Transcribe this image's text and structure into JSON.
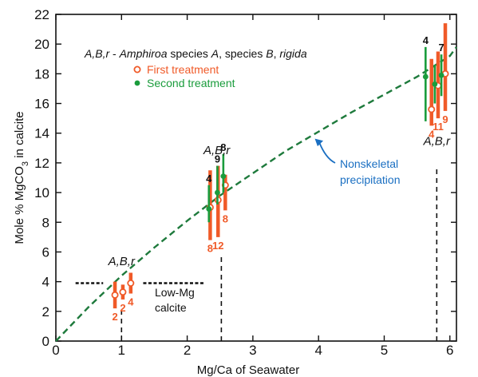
{
  "chart_data": {
    "type": "scatter",
    "xlabel": "Mg/Ca of Seawater",
    "ylabel_main": "Mole % MgCO",
    "ylabel_sub": "3",
    "ylabel_tail": " in calcite",
    "xlim": [
      0,
      6.1
    ],
    "ylim": [
      0,
      22
    ],
    "xticks": [
      0,
      1,
      2,
      3,
      4,
      5,
      6
    ],
    "yticks": [
      0,
      2,
      4,
      6,
      8,
      10,
      12,
      14,
      16,
      18,
      20,
      22
    ],
    "grid": false,
    "colors": {
      "first": "#f05a28",
      "second": "#1a9c3c",
      "curve": "#1e7a3c",
      "nonskeletal": "#1a6fc2",
      "dark": "#222222",
      "lowmg_box": "#f05a28"
    },
    "legend": {
      "title_prefix": "A,B,r",
      "title_dash": " - ",
      "title_genus": "Amphiroa",
      "title_rest": " species ",
      "title_a": "A",
      "title_comma": ", species ",
      "title_b": "B",
      "title_comma2": ", ",
      "title_r": "rigida",
      "first_label": "First treatment",
      "second_label": "Second treatment",
      "placement": "top-left"
    },
    "curve": {
      "name": "Nonskeletal precipitation",
      "x": [
        0,
        0.5,
        1,
        1.5,
        2,
        2.5,
        3,
        3.5,
        4,
        4.5,
        5,
        5.5,
        6,
        6.1
      ],
      "y": [
        0,
        2.3,
        4.4,
        6.3,
        8.1,
        9.8,
        11.3,
        12.8,
        14.1,
        15.4,
        16.6,
        17.8,
        19.2,
        19.8
      ]
    },
    "series": [
      {
        "name": "First treatment",
        "points": [
          {
            "x": 0.9,
            "y": 3.1,
            "lo": 2.2,
            "hi": 4.0,
            "label": "2"
          },
          {
            "x": 1.02,
            "y": 3.3,
            "lo": 2.8,
            "hi": 3.8,
            "label": "2"
          },
          {
            "x": 1.14,
            "y": 3.9,
            "lo": 3.2,
            "hi": 4.6,
            "label": "4"
          },
          {
            "x": 2.35,
            "y": 9.0,
            "lo": 6.8,
            "hi": 11.5,
            "label": "8"
          },
          {
            "x": 2.47,
            "y": 9.5,
            "lo": 7.0,
            "hi": 11.8,
            "label": "12"
          },
          {
            "x": 2.58,
            "y": 10.5,
            "lo": 8.8,
            "hi": 11.2,
            "label": "8"
          },
          {
            "x": 5.72,
            "y": 15.6,
            "lo": 14.5,
            "hi": 19.0,
            "label": "4"
          },
          {
            "x": 5.82,
            "y": 17.2,
            "lo": 15.0,
            "hi": 19.5,
            "label": "11"
          },
          {
            "x": 5.93,
            "y": 18.0,
            "lo": 15.5,
            "hi": 21.4,
            "label": "9"
          }
        ]
      },
      {
        "name": "Second treatment",
        "points": [
          {
            "x": 2.33,
            "y": 8.9,
            "lo": 8.0,
            "hi": 10.5,
            "label": "4"
          },
          {
            "x": 2.46,
            "y": 10.0,
            "lo": 9.2,
            "hi": 11.8,
            "label": "9"
          },
          {
            "x": 2.55,
            "y": 11.1,
            "lo": 10.0,
            "hi": 12.6,
            "label": "8"
          },
          {
            "x": 5.63,
            "y": 17.8,
            "lo": 14.8,
            "hi": 19.8,
            "label": "4"
          },
          {
            "x": 5.77,
            "y": 17.3,
            "lo": 16.0,
            "hi": 18.6,
            "label": ""
          },
          {
            "x": 5.87,
            "y": 17.9,
            "lo": 16.5,
            "hi": 19.3,
            "label": "7"
          }
        ]
      }
    ],
    "group_labels": [
      {
        "text": "A,B,r",
        "x": 1.0,
        "y": 5.1
      },
      {
        "text": "A,B,r",
        "x": 2.45,
        "y": 12.6
      },
      {
        "text": "A,B,r",
        "x": 5.8,
        "y": 13.2
      }
    ],
    "vlines": [
      {
        "x": 1.0,
        "y0": 0,
        "y1": 2.0
      },
      {
        "x": 2.52,
        "y0": 0,
        "y1": 5.8
      },
      {
        "x": 5.8,
        "y0": 0,
        "y1": 11.8
      }
    ],
    "lowmg_line": {
      "x0": 0.3,
      "x1": 2.25,
      "y": 3.9,
      "gap_x0": 0.72,
      "gap_x1": 1.33
    },
    "annotations": {
      "lowmg_line1": "Low-Mg",
      "lowmg_line2": "calcite",
      "nonskeletal_line1": "Nonskeletal",
      "nonskeletal_line2": "precipitation"
    }
  }
}
